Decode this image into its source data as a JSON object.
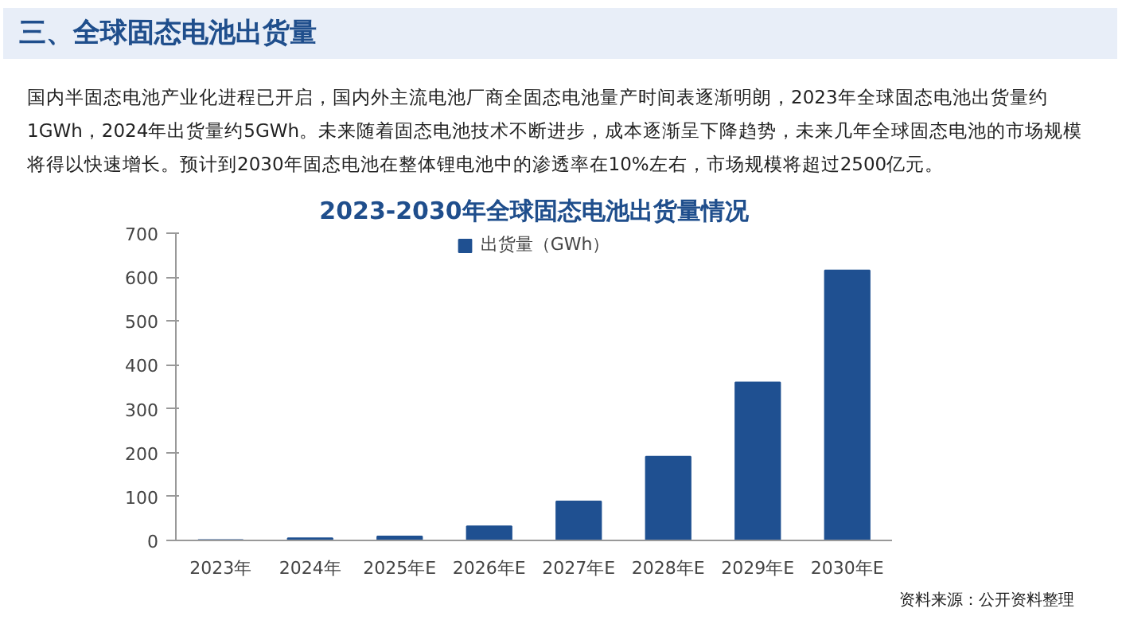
{
  "chart_data": {
    "type": "bar",
    "title": "三、全球固态电池出货量",
    "subtitle": "2023-2030年全球固态电池出货量情况",
    "annotations": [
      "国内半固态电池产业化进程已开启，国内外主流电池厂商全固态电池量产时间表逐渐明朗，2023年全球固态电池出货量约1GWh，2024年出货量约5GWh。未来随着固态电池技术不断进步，成本逐渐呈下降趋势，未来几年全球固态电池的市场规模将得以快速增长。预计到2030年固态电池在整体锂电池中的渗透率在10%左右，市场规模将超过2500亿元。",
      "资料来源：公开资料整理"
    ],
    "categories": [
      "2023年",
      "2024年",
      "2025年E",
      "2026年E",
      "2027年E",
      "2028年E",
      "2029年E",
      "2030年E"
    ],
    "series": [
      {
        "name": "出货量（GWh）",
        "color": "#1f5091",
        "values": [
          1,
          5,
          9,
          32,
          89,
          191,
          360,
          615
        ]
      }
    ],
    "ylim": [
      0,
      700
    ],
    "yticks": [
      0,
      100,
      200,
      300,
      400,
      500,
      600,
      700
    ],
    "grid": false,
    "legend": "top"
  }
}
